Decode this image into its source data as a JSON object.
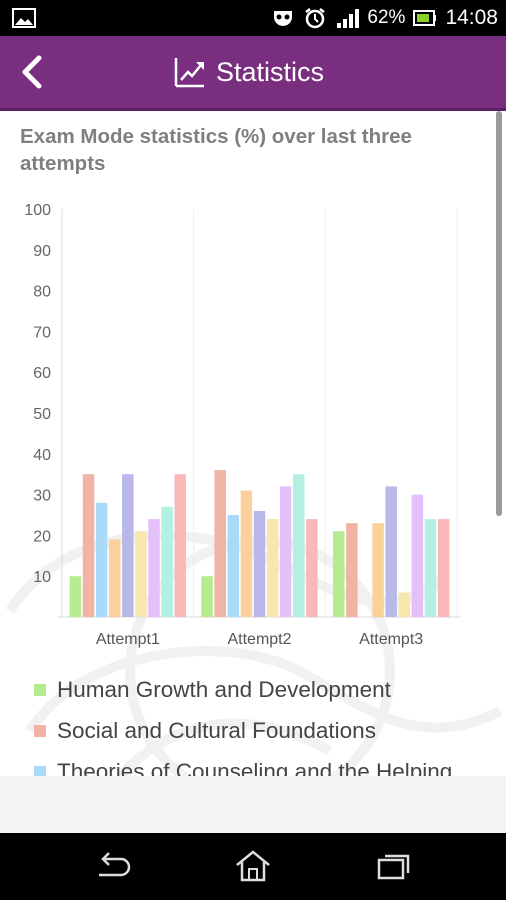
{
  "status_bar": {
    "battery_percent": "62%",
    "time": "14:08",
    "icons": [
      "image-icon",
      "voicemail-icon",
      "alarm-icon",
      "signal-icon",
      "battery-icon"
    ]
  },
  "app_bar": {
    "title": "Statistics",
    "back_icon": "chevron-left-icon",
    "title_icon": "trending-up-icon",
    "color": "#7a2e80"
  },
  "chart_data": {
    "type": "bar",
    "title": "Exam Mode statistics (%) over last three attempts",
    "categories": [
      "Attempt1",
      "Attempt2",
      "Attempt3"
    ],
    "ylim": [
      0,
      100
    ],
    "yticks": [
      10,
      20,
      30,
      40,
      50,
      60,
      70,
      80,
      90,
      100
    ],
    "grid": true,
    "legend_placement": "bottom",
    "series": [
      {
        "name": "Human Growth and Development",
        "color": "#b5ec8f",
        "values": [
          10,
          10,
          21
        ]
      },
      {
        "name": "Social and Cultural Foundations",
        "color": "#f0b3a5",
        "values": [
          35,
          36,
          23
        ]
      },
      {
        "name": "Theories of Counseling and the Helping",
        "color": "#aadaf9",
        "values": [
          28,
          25,
          0
        ]
      },
      {
        "name": "",
        "color": "#fbd09a",
        "values": [
          19,
          31,
          23
        ]
      },
      {
        "name": "",
        "color": "#b9b8e9",
        "values": [
          35,
          26,
          32
        ]
      },
      {
        "name": "",
        "color": "#f7e7ae",
        "values": [
          21,
          24,
          6
        ]
      },
      {
        "name": "",
        "color": "#e3c0fa",
        "values": [
          24,
          32,
          30
        ]
      },
      {
        "name": "",
        "color": "#b2f0e1",
        "values": [
          27,
          35,
          24
        ]
      },
      {
        "name": "",
        "color": "#fbb8b8",
        "values": [
          35,
          24,
          24
        ]
      }
    ]
  },
  "nav_bar": {
    "icons": [
      "back-icon",
      "home-icon",
      "recent-apps-icon"
    ]
  }
}
